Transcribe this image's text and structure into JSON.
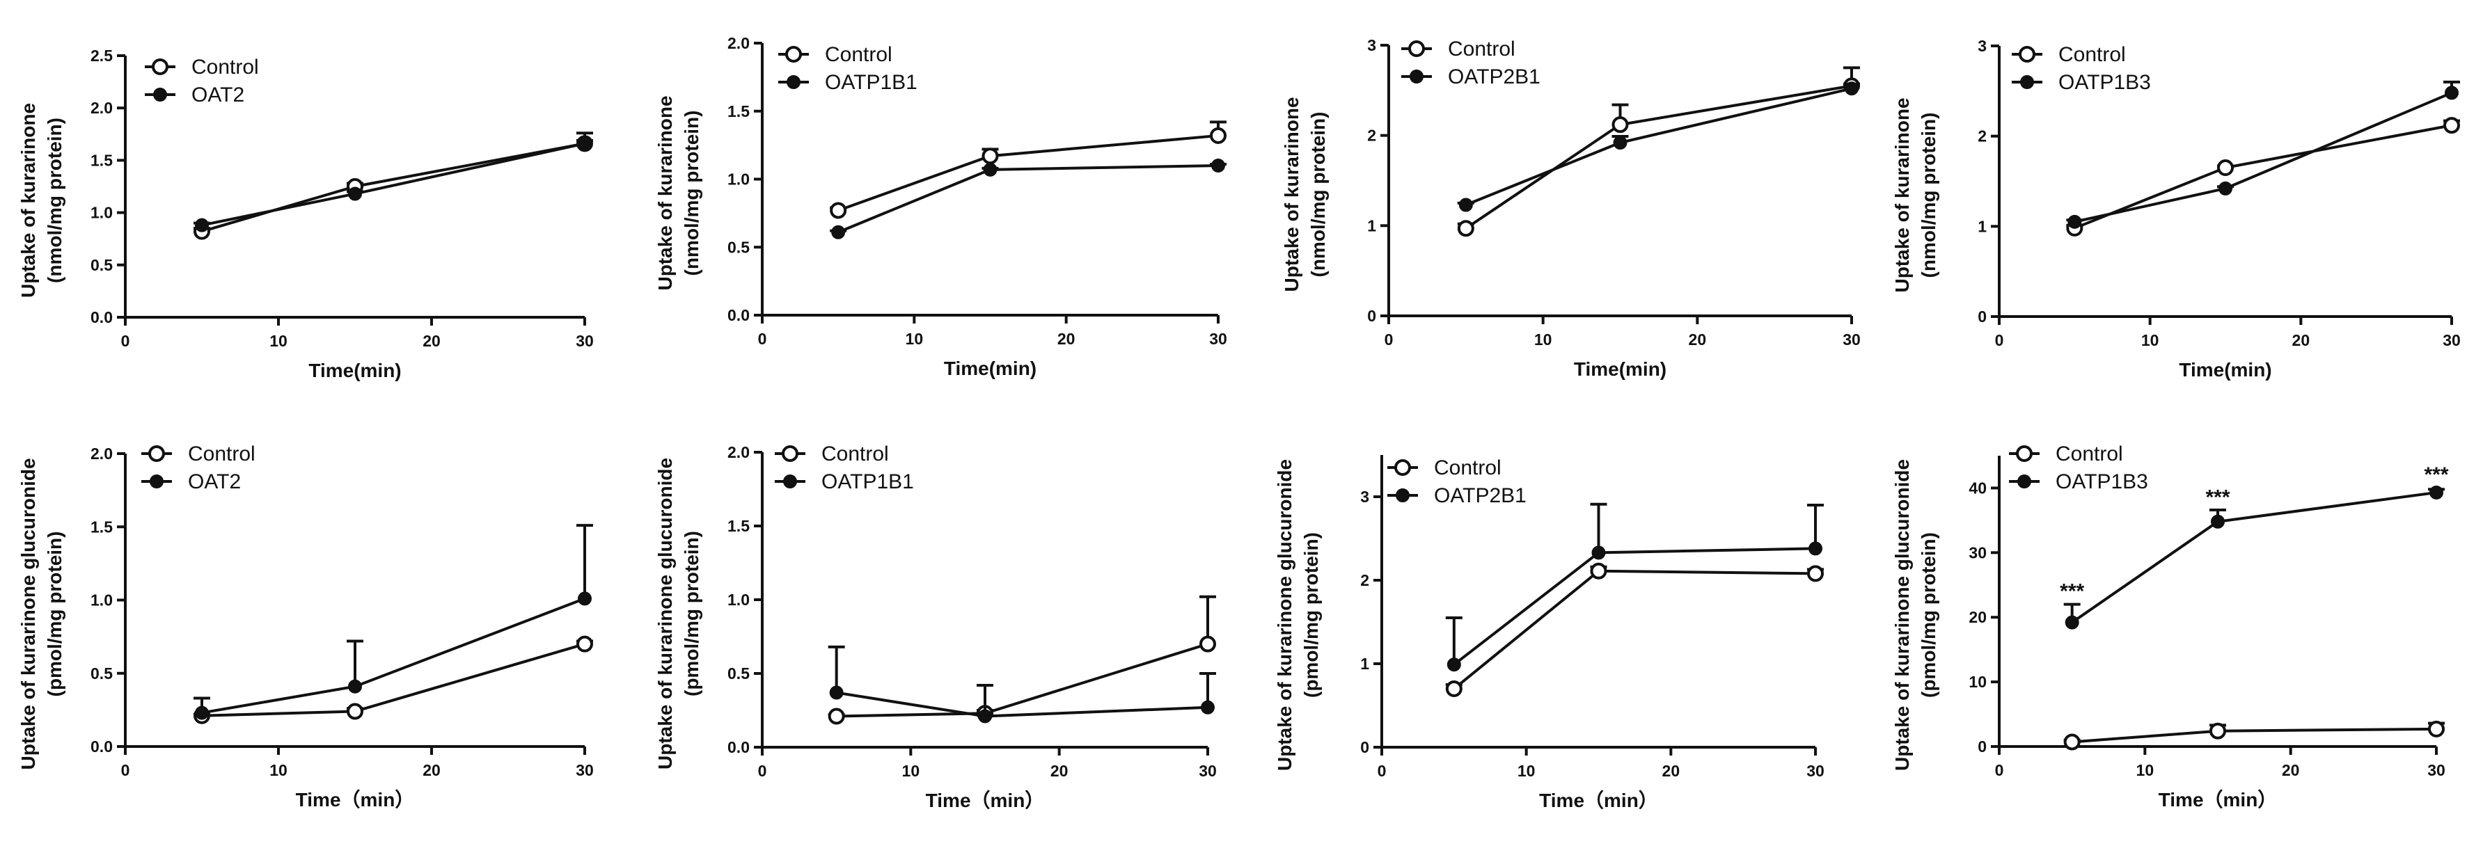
{
  "chart_data": [
    {
      "type": "line",
      "xlabel": "Time(min)",
      "ylabel": [
        "Uptake of kurarinone",
        "(nmol/mg protein)"
      ],
      "xlim": [
        0,
        30
      ],
      "xticks": [
        0,
        10,
        20,
        30
      ],
      "ylim": [
        0,
        2.5
      ],
      "yticks": [
        0,
        0.5,
        1.0,
        1.5,
        2.0,
        2.5
      ],
      "ytick_labels": [
        "0.0",
        "0.5",
        "1.0",
        "1.5",
        "2.0",
        "2.5"
      ],
      "x": [
        5,
        15,
        30
      ],
      "series": [
        {
          "name": "Control",
          "marker": "open-circle",
          "values": [
            0.82,
            1.25,
            1.66
          ],
          "errors": [
            0.03,
            0.03,
            0.03
          ]
        },
        {
          "name": "OAT2",
          "marker": "filled-circle",
          "values": [
            0.88,
            1.18,
            1.66
          ],
          "errors": [
            0.02,
            0.02,
            0.1
          ]
        }
      ],
      "annotations": []
    },
    {
      "type": "line",
      "xlabel": "Time(min)",
      "ylabel": [
        "Uptake of kurarinone",
        "(nmol/mg protein)"
      ],
      "xlim": [
        0,
        30
      ],
      "xticks": [
        0,
        10,
        20,
        30
      ],
      "ylim": [
        0,
        2.0
      ],
      "yticks": [
        0,
        0.5,
        1.0,
        1.5,
        2.0
      ],
      "ytick_labels": [
        "0.0",
        "0.5",
        "1.0",
        "1.5",
        "2.0"
      ],
      "x": [
        5,
        15,
        30
      ],
      "series": [
        {
          "name": "Control",
          "marker": "open-circle",
          "values": [
            0.77,
            1.17,
            1.32
          ],
          "errors": [
            0.02,
            0.05,
            0.1
          ]
        },
        {
          "name": "OATP1B1",
          "marker": "filled-circle",
          "values": [
            0.61,
            1.07,
            1.1
          ],
          "errors": [
            0.01,
            0.01,
            0.01
          ]
        }
      ],
      "annotations": []
    },
    {
      "type": "line",
      "xlabel": "Time(min)",
      "ylabel": [
        "Uptake of kurarinone",
        "(nmol/mg protein)"
      ],
      "xlim": [
        0,
        30
      ],
      "xticks": [
        0,
        10,
        20,
        30
      ],
      "ylim": [
        0,
        3
      ],
      "yticks": [
        0,
        1,
        2,
        3
      ],
      "ytick_labels": [
        "0",
        "1",
        "2",
        "3"
      ],
      "x": [
        5,
        15,
        30
      ],
      "series": [
        {
          "name": "Control",
          "marker": "open-circle",
          "values": [
            0.97,
            2.12,
            2.55
          ],
          "errors": [
            0.05,
            0.22,
            0.2
          ]
        },
        {
          "name": "OATP2B1",
          "marker": "filled-circle",
          "values": [
            1.23,
            1.92,
            2.52
          ],
          "errors": [
            0.02,
            0.07,
            0.05
          ]
        }
      ],
      "annotations": []
    },
    {
      "type": "line",
      "xlabel": "Time(min)",
      "ylabel": [
        "Uptake of kurarinone",
        "(nmol/mg protein)"
      ],
      "xlim": [
        0,
        30
      ],
      "xticks": [
        0,
        10,
        20,
        30
      ],
      "ylim": [
        0,
        3
      ],
      "yticks": [
        0,
        1,
        2,
        3
      ],
      "ytick_labels": [
        "0",
        "1",
        "2",
        "3"
      ],
      "x": [
        5,
        15,
        30
      ],
      "series": [
        {
          "name": "Control",
          "marker": "open-circle",
          "values": [
            0.98,
            1.65,
            2.12
          ],
          "errors": [
            0.03,
            0.02,
            0.05
          ]
        },
        {
          "name": "OATP1B3",
          "marker": "filled-circle",
          "values": [
            1.05,
            1.42,
            2.48
          ],
          "errors": [
            0.02,
            0.02,
            0.12
          ]
        }
      ],
      "annotations": []
    },
    {
      "type": "line",
      "xlabel": "Time（min）",
      "ylabel": [
        "Uptake of kurarinone glucuronide",
        "(pmol/mg protein)"
      ],
      "xlim": [
        0,
        30
      ],
      "xticks": [
        0,
        10,
        20,
        30
      ],
      "ylim": [
        0,
        2.0
      ],
      "yticks": [
        0,
        0.5,
        1.0,
        1.5,
        2.0
      ],
      "ytick_labels": [
        "0.0",
        "0.5",
        "1.0",
        "1.5",
        "2.0"
      ],
      "x": [
        5,
        15,
        30
      ],
      "series": [
        {
          "name": "Control",
          "marker": "open-circle",
          "values": [
            0.21,
            0.24,
            0.7
          ],
          "errors": [
            0.01,
            0.02,
            0.02
          ]
        },
        {
          "name": "OAT2",
          "marker": "filled-circle",
          "values": [
            0.23,
            0.41,
            1.01
          ],
          "errors": [
            0.1,
            0.31,
            0.5
          ]
        }
      ],
      "annotations": []
    },
    {
      "type": "line",
      "xlabel": "Time（min）",
      "ylabel": [
        "Uptake of kurarinone glucuronide",
        "(pmol/mg protein)"
      ],
      "xlim": [
        0,
        30
      ],
      "xticks": [
        0,
        10,
        20,
        30
      ],
      "ylim": [
        0,
        2.0
      ],
      "yticks": [
        0,
        0.5,
        1.0,
        1.5,
        2.0
      ],
      "ytick_labels": [
        "0.0",
        "0.5",
        "1.0",
        "1.5",
        "2.0"
      ],
      "x": [
        5,
        15,
        30
      ],
      "series": [
        {
          "name": "Control",
          "marker": "open-circle",
          "values": [
            0.21,
            0.23,
            0.7
          ],
          "errors": [
            0.01,
            0.02,
            0.32
          ]
        },
        {
          "name": "OATP1B1",
          "marker": "filled-circle",
          "values": [
            0.37,
            0.21,
            0.27
          ],
          "errors": [
            0.31,
            0.21,
            0.23
          ]
        }
      ],
      "annotations": []
    },
    {
      "type": "line",
      "xlabel": "Time（min）",
      "ylabel": [
        "Uptake of kurarinone glucuronide",
        "(pmol/mg protein)"
      ],
      "xlim": [
        0,
        30
      ],
      "xticks": [
        0,
        10,
        20,
        30
      ],
      "ylim": [
        0,
        3.5
      ],
      "yticks": [
        0,
        1,
        2,
        3
      ],
      "ytick_labels": [
        "0",
        "1",
        "2",
        "3"
      ],
      "x": [
        5,
        15,
        30
      ],
      "series": [
        {
          "name": "Control",
          "marker": "open-circle",
          "values": [
            0.7,
            2.11,
            2.08
          ],
          "errors": [
            0.05,
            0.05,
            0.05
          ]
        },
        {
          "name": "OATP2B1",
          "marker": "filled-circle",
          "values": [
            0.99,
            2.33,
            2.38
          ],
          "errors": [
            0.56,
            0.58,
            0.52
          ]
        }
      ],
      "annotations": []
    },
    {
      "type": "line",
      "xlabel": "Time（min）",
      "ylabel": [
        "Uptake of kurarinone glucuronide",
        "(pmol/mg protein)"
      ],
      "xlim": [
        0,
        30
      ],
      "xticks": [
        0,
        10,
        20,
        30
      ],
      "ylim": [
        0,
        45
      ],
      "yticks": [
        0,
        10,
        20,
        30,
        40
      ],
      "ytick_labels": [
        "0",
        "10",
        "20",
        "30",
        "40"
      ],
      "x": [
        5,
        15,
        30
      ],
      "series": [
        {
          "name": "Control",
          "marker": "open-circle",
          "values": [
            0.7,
            2.4,
            2.7
          ],
          "errors": [
            0.3,
            0.9,
            0.9
          ]
        },
        {
          "name": "OATP1B3",
          "marker": "filled-circle",
          "values": [
            19.2,
            34.8,
            39.3
          ],
          "errors": [
            2.8,
            1.8,
            0.5
          ]
        }
      ],
      "annotations": [
        {
          "text": "***",
          "x": 5,
          "y": 23
        },
        {
          "text": "***",
          "x": 15,
          "y": 37.5
        },
        {
          "text": "***",
          "x": 30,
          "y": 41
        }
      ]
    }
  ]
}
